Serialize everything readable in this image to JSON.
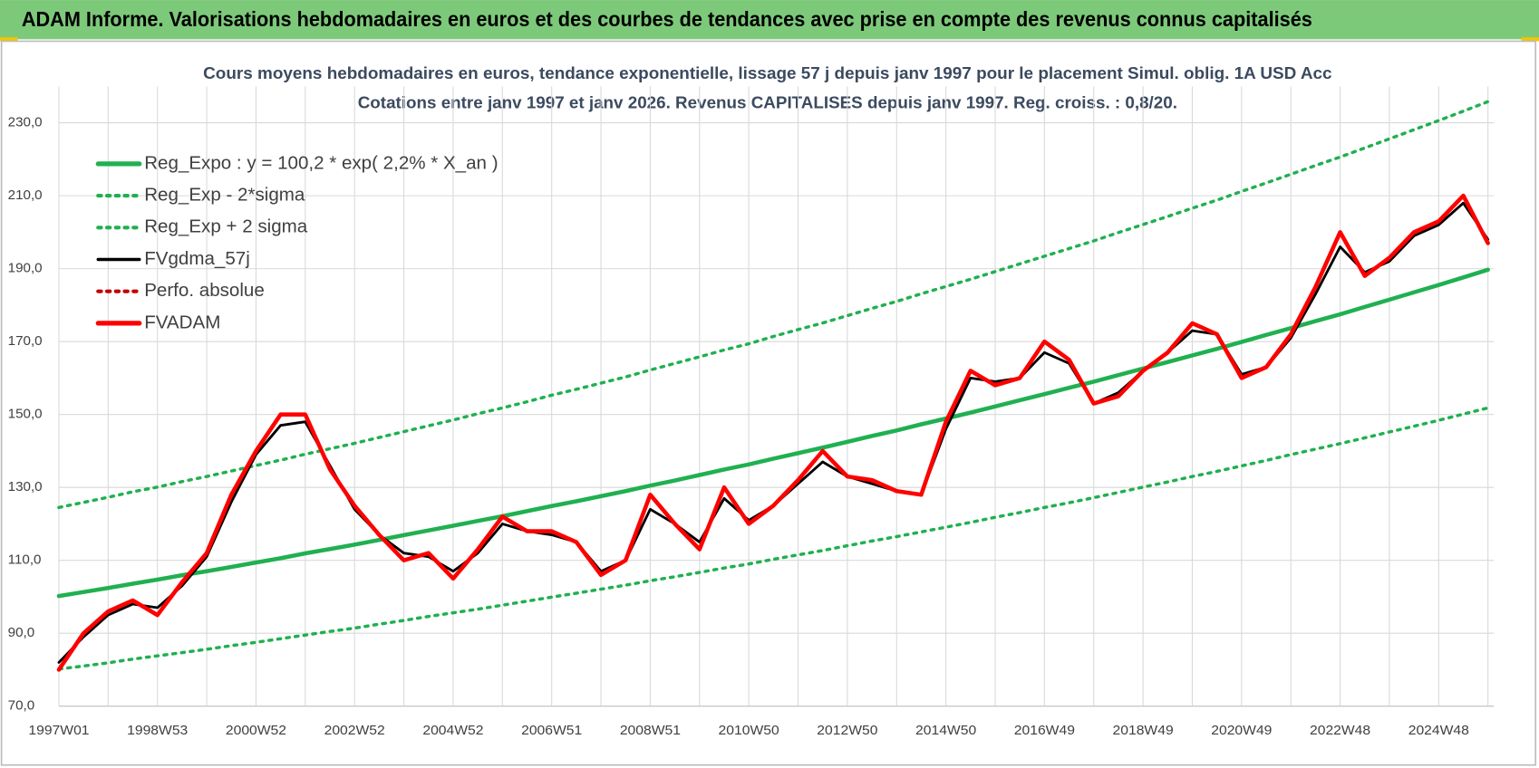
{
  "header": "ADAM Informe. Valorisations hebdomadaires en euros et des courbes de tendances avec prise en compte des revenus connus capitalisés",
  "chart_data": {
    "type": "line",
    "title": "Cours moyens hebdomadaires en euros, tendance exponentielle, lissage 57 j depuis janv 1997  pour le placement Simul. oblig. 1A USD Acc",
    "subtitle": "Cotations entre janv 1997 et janv 2026. Revenus CAPITALISES depuis janv 1997. Reg. croiss. : 0,8/20.",
    "categories": [
      "1997W01",
      null,
      null,
      null,
      "1998W53",
      null,
      null,
      null,
      "2000W52",
      null,
      null,
      null,
      "2002W52",
      null,
      null,
      null,
      "2004W52",
      null,
      null,
      null,
      "2006W51",
      null,
      null,
      null,
      "2008W51",
      null,
      null,
      null,
      "2010W50",
      null,
      null,
      null,
      "2012W50",
      null,
      null,
      null,
      "2014W50",
      null,
      null,
      null,
      "2016W49",
      null,
      null,
      null,
      "2018W49",
      null,
      null,
      null,
      "2020W49",
      null,
      null,
      null,
      "2022W48",
      null,
      null,
      null,
      "2024W48",
      null,
      null
    ],
    "ylim": [
      70,
      240
    ],
    "yticks": [
      {
        "value": 70,
        "label": "70,0"
      },
      {
        "value": 90,
        "label": "90,0"
      },
      {
        "value": 110,
        "label": "110,0"
      },
      {
        "value": 130,
        "label": "130,0"
      },
      {
        "value": 150,
        "label": "150,0"
      },
      {
        "value": 170,
        "label": "170,0"
      },
      {
        "value": 190,
        "label": "190,0"
      },
      {
        "value": 210,
        "label": "210,0"
      },
      {
        "value": 230,
        "label": "230,0"
      }
    ],
    "grid": true,
    "legend": "upper left",
    "series": [
      {
        "name": "Reg_Expo : y = 100,2 * exp( 2,2% *  X_an )",
        "color": "#20b050",
        "style": "solid",
        "values": [
          100.2,
          101.3,
          102.4,
          103.6,
          104.7,
          105.9,
          107.0,
          108.2,
          109.4,
          110.6,
          111.9,
          113.1,
          114.3,
          115.6,
          116.9,
          118.2,
          119.5,
          120.8,
          122.1,
          123.5,
          124.9,
          126.2,
          127.6,
          129.0,
          130.5,
          131.9,
          133.4,
          134.9,
          136.3,
          137.9,
          139.4,
          140.9,
          142.5,
          144.1,
          145.6,
          147.3,
          148.9,
          150.5,
          152.2,
          153.9,
          155.6,
          157.3,
          159.0,
          160.8,
          162.6,
          164.4,
          166.2,
          168.0,
          169.9,
          171.8,
          173.7,
          175.6,
          177.5,
          179.5,
          181.5,
          183.5,
          185.5,
          187.6,
          189.7
        ]
      },
      {
        "name": "Reg_Exp - 2*sigma",
        "color": "#20b050",
        "style": "dotted",
        "values": [
          80.2,
          81.0,
          81.9,
          82.9,
          83.8,
          84.7,
          85.6,
          86.6,
          87.5,
          88.5,
          89.5,
          90.5,
          91.4,
          92.5,
          93.5,
          94.6,
          95.6,
          96.6,
          97.7,
          98.8,
          99.9,
          101.0,
          102.1,
          103.2,
          104.4,
          105.5,
          106.7,
          107.9,
          109.0,
          110.3,
          111.5,
          112.7,
          114.0,
          115.3,
          116.5,
          117.8,
          119.1,
          120.4,
          121.8,
          123.1,
          124.5,
          125.8,
          127.2,
          128.6,
          130.1,
          131.5,
          133.0,
          134.4,
          135.9,
          137.4,
          139.0,
          140.5,
          142.0,
          143.6,
          145.2,
          146.8,
          148.4,
          150.1,
          151.8
        ]
      },
      {
        "name": "Reg_Exp + 2 sigma",
        "color": "#20b050",
        "style": "dotted",
        "values": [
          124.5,
          125.9,
          127.3,
          128.8,
          130.1,
          131.6,
          133.0,
          134.5,
          136.0,
          137.5,
          139.1,
          140.6,
          142.1,
          143.7,
          145.3,
          146.9,
          148.5,
          150.2,
          151.8,
          153.5,
          155.3,
          156.9,
          158.6,
          160.3,
          162.2,
          164.0,
          165.8,
          167.7,
          169.4,
          171.4,
          173.3,
          175.1,
          177.1,
          179.1,
          181.0,
          183.1,
          185.1,
          187.1,
          189.2,
          191.3,
          193.4,
          195.5,
          197.6,
          199.9,
          202.1,
          204.3,
          206.6,
          208.8,
          211.2,
          213.5,
          215.9,
          218.3,
          220.6,
          223.1,
          225.6,
          228.1,
          230.6,
          233.2,
          235.8
        ]
      },
      {
        "name": "FVgdma_57j",
        "color": "#000000",
        "style": "solid",
        "values": [
          82,
          89,
          95,
          98,
          97,
          103,
          111,
          126,
          139,
          147,
          148,
          136,
          124,
          117,
          112,
          111,
          107,
          112,
          120,
          118,
          117,
          115,
          107,
          110,
          124,
          120,
          115,
          127,
          121,
          125,
          131,
          137,
          133,
          131,
          129,
          128,
          146,
          160,
          159,
          160,
          167,
          164,
          153,
          156,
          162,
          167,
          173,
          172,
          161,
          163,
          171,
          183,
          196,
          189,
          192,
          199,
          202,
          208,
          198
        ]
      },
      {
        "name": "Perfo. absolue",
        "color": "#c00000",
        "style": "dotted",
        "values": [
          80,
          90,
          96,
          99,
          95,
          104,
          112,
          128,
          140,
          150,
          150,
          135,
          125,
          117,
          110,
          112,
          105,
          113,
          122,
          118,
          118,
          115,
          106,
          110,
          128,
          120,
          113,
          130,
          120,
          125,
          132,
          140,
          133,
          132,
          129,
          128,
          148,
          162,
          158,
          160,
          170,
          165,
          153,
          155,
          162,
          167,
          175,
          172,
          160,
          163,
          172,
          185,
          200,
          188,
          193,
          200,
          203,
          210,
          197
        ]
      },
      {
        "name": "FVADAM",
        "color": "#ff0000",
        "style": "solid",
        "values": [
          80,
          90,
          96,
          99,
          95,
          104,
          112,
          128,
          140,
          150,
          150,
          135,
          125,
          117,
          110,
          112,
          105,
          113,
          122,
          118,
          118,
          115,
          106,
          110,
          128,
          120,
          113,
          130,
          120,
          125,
          132,
          140,
          133,
          132,
          129,
          128,
          148,
          162,
          158,
          160,
          170,
          165,
          153,
          155,
          162,
          167,
          175,
          172,
          160,
          163,
          172,
          185,
          200,
          188,
          193,
          200,
          203,
          210,
          197
        ]
      }
    ]
  }
}
